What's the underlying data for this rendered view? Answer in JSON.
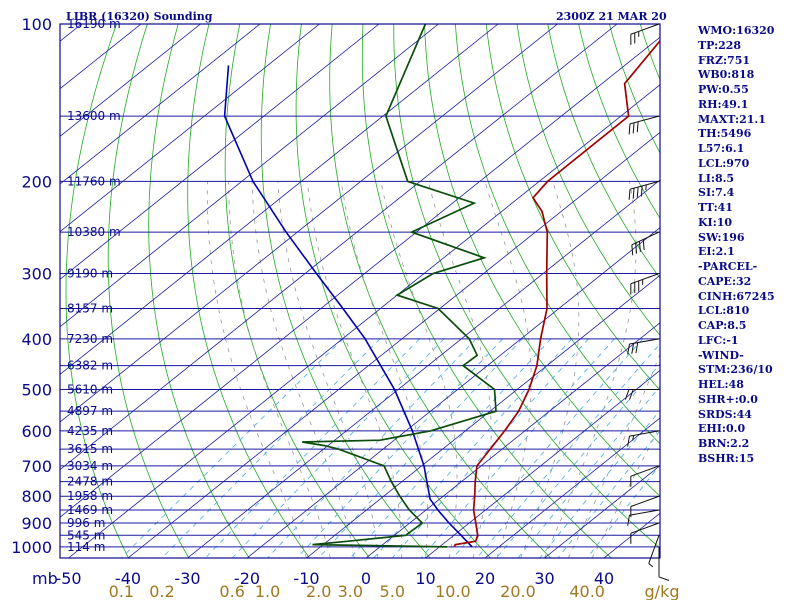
{
  "header": {
    "title_left": "LIBR (16320) Sounding",
    "title_right": "2300Z 21 MAR 20"
  },
  "indices": [
    "WMO:16320",
    "TP:228",
    "FRZ:751",
    "WB0:818",
    "PW:0.55",
    "RH:49.1",
    "MAXT:21.1",
    "TH:5496",
    "L57:6.1",
    "LCL:970",
    "LI:8.5",
    "SI:7.4",
    "TT:41",
    "KI:10",
    "SW:196",
    "EI:2.1",
    "-PARCEL-",
    "CAPE:32",
    "CINH:67245",
    "LCL:810",
    "CAP:8.5",
    "LFC:-1",
    "-WIND-",
    "STM:236/10",
    "HEL:48",
    "SHR+:0.0",
    "SRDS:44",
    "EHI:0.0",
    "BRN:2.2",
    "BSHR:15"
  ],
  "chart_data": {
    "type": "line",
    "subtype": "skew-t log-p sounding",
    "pressure_unit_label": "mb",
    "pressure_levels": [
      100,
      200,
      300,
      400,
      500,
      600,
      700,
      800,
      900,
      1000
    ],
    "pressure_tick_labels": [
      "100",
      "200",
      "300",
      "400",
      "500",
      "600",
      "700",
      "800",
      "900",
      "1000"
    ],
    "height_labels": [
      {
        "p": 100,
        "label": "16190 m"
      },
      {
        "p": 150,
        "label": "13600 m"
      },
      {
        "p": 200,
        "label": "11760 m"
      },
      {
        "p": 250,
        "label": "10380 m"
      },
      {
        "p": 300,
        "label": "9190 m"
      },
      {
        "p": 350,
        "label": "8157 m"
      },
      {
        "p": 400,
        "label": "7230 m"
      },
      {
        "p": 450,
        "label": "6382 m"
      },
      {
        "p": 500,
        "label": "5610 m"
      },
      {
        "p": 550,
        "label": "4897 m"
      },
      {
        "p": 600,
        "label": "4235 m"
      },
      {
        "p": 650,
        "label": "3615 m"
      },
      {
        "p": 700,
        "label": "3034 m"
      },
      {
        "p": 750,
        "label": "2478 m"
      },
      {
        "p": 800,
        "label": "1958 m"
      },
      {
        "p": 850,
        "label": "1469 m"
      },
      {
        "p": 900,
        "label": "996 m"
      },
      {
        "p": 950,
        "label": "545 m"
      },
      {
        "p": 1000,
        "label": "114 m"
      }
    ],
    "temperature_ticks": [
      -50,
      -40,
      -30,
      -20,
      -10,
      0,
      10,
      20,
      30,
      40
    ],
    "temperature_tick_labels": [
      "-50",
      "-40",
      "-30",
      "-20",
      "-10",
      "0",
      "10",
      "20",
      "30",
      "40"
    ],
    "mixing_ratio_labels": [
      "0.1",
      "0.2",
      "0.6",
      "1.0",
      "2.0",
      "3.0",
      "5.0",
      "10.0",
      "20.0",
      "40.0",
      "g/kg"
    ],
    "mixing_ratio_values": [
      0.1,
      0.2,
      0.6,
      1.0,
      2.0,
      3.0,
      5.0,
      10.0,
      20.0,
      40.0
    ],
    "temperature_profile": [
      {
        "p": 1000,
        "t": 12.5
      },
      {
        "p": 990,
        "t": 12.2
      },
      {
        "p": 975,
        "t": 14.9
      },
      {
        "p": 950,
        "t": 14.0
      },
      {
        "p": 900,
        "t": 11.1
      },
      {
        "p": 850,
        "t": 8.0
      },
      {
        "p": 800,
        "t": 5.3
      },
      {
        "p": 750,
        "t": 2.3
      },
      {
        "p": 700,
        "t": -0.7
      },
      {
        "p": 650,
        "t": -2.0
      },
      {
        "p": 600,
        "t": -3.4
      },
      {
        "p": 550,
        "t": -5.2
      },
      {
        "p": 500,
        "t": -8.0
      },
      {
        "p": 450,
        "t": -11.7
      },
      {
        "p": 400,
        "t": -16.7
      },
      {
        "p": 350,
        "t": -22.0
      },
      {
        "p": 300,
        "t": -29.4
      },
      {
        "p": 250,
        "t": -38.0
      },
      {
        "p": 228,
        "t": -43.3
      },
      {
        "p": 215,
        "t": -47.6
      },
      {
        "p": 200,
        "t": -48.6
      },
      {
        "p": 150,
        "t": -48.7
      },
      {
        "p": 130,
        "t": -56.2
      },
      {
        "p": 100,
        "t": -60.4
      }
    ],
    "dewpoint_profile": [
      {
        "p": 1000,
        "t": 11.3
      },
      {
        "p": 990,
        "t": -11.8
      },
      {
        "p": 975,
        "t": -6.5
      },
      {
        "p": 950,
        "t": 1.9
      },
      {
        "p": 900,
        "t": 2.1
      },
      {
        "p": 850,
        "t": -2.8
      },
      {
        "p": 800,
        "t": -7.3
      },
      {
        "p": 750,
        "t": -11.8
      },
      {
        "p": 700,
        "t": -16.3
      },
      {
        "p": 650,
        "t": -27.5
      },
      {
        "p": 640,
        "t": -30.6
      },
      {
        "p": 630,
        "t": -35.1
      },
      {
        "p": 625,
        "t": -22.4
      },
      {
        "p": 600,
        "t": -15.9
      },
      {
        "p": 550,
        "t": -9.0
      },
      {
        "p": 500,
        "t": -13.8
      },
      {
        "p": 450,
        "t": -24.1
      },
      {
        "p": 430,
        "t": -23.9
      },
      {
        "p": 400,
        "t": -28.7
      },
      {
        "p": 350,
        "t": -40.3
      },
      {
        "p": 330,
        "t": -50.0
      },
      {
        "p": 300,
        "t": -48.5
      },
      {
        "p": 280,
        "t": -43.2
      },
      {
        "p": 250,
        "t": -60.8
      },
      {
        "p": 220,
        "t": -56.4
      },
      {
        "p": 200,
        "t": -72.1
      },
      {
        "p": 150,
        "t": -89.5
      },
      {
        "p": 100,
        "t": -102.2
      }
    ],
    "parcel_profile": [
      {
        "p": 1000,
        "t": 15.5
      },
      {
        "p": 950,
        "t": 11.2
      },
      {
        "p": 900,
        "t": 6.6
      },
      {
        "p": 850,
        "t": 2.0
      },
      {
        "p": 810,
        "t": -1.6
      },
      {
        "p": 700,
        "t": -9.6
      },
      {
        "p": 600,
        "t": -18.9
      },
      {
        "p": 500,
        "t": -30.6
      },
      {
        "p": 400,
        "t": -46.2
      },
      {
        "p": 350,
        "t": -56.3
      },
      {
        "p": 300,
        "t": -68.1
      },
      {
        "p": 250,
        "t": -81.9
      },
      {
        "p": 200,
        "t": -98.1
      },
      {
        "p": 150,
        "t": -116.6
      },
      {
        "p": 120,
        "t": -126.6
      }
    ],
    "wind_barbs": [
      {
        "p": 1000,
        "dir": 180,
        "spd": 10
      },
      {
        "p": 950,
        "dir": 200,
        "spd": 5
      },
      {
        "p": 900,
        "dir": 250,
        "spd": 10
      },
      {
        "p": 850,
        "dir": 260,
        "spd": 10
      },
      {
        "p": 800,
        "dir": 250,
        "spd": 10
      },
      {
        "p": 700,
        "dir": 250,
        "spd": 10
      },
      {
        "p": 600,
        "dir": 260,
        "spd": 15
      },
      {
        "p": 500,
        "dir": 270,
        "spd": 20
      },
      {
        "p": 400,
        "dir": 260,
        "spd": 30
      },
      {
        "p": 300,
        "dir": 250,
        "spd": 35
      },
      {
        "p": 250,
        "dir": 245,
        "spd": 40
      },
      {
        "p": 200,
        "dir": 255,
        "spd": 45
      },
      {
        "p": 150,
        "dir": 255,
        "spd": 30
      },
      {
        "p": 100,
        "dir": 250,
        "spd": 25
      }
    ],
    "colors": {
      "frame": "#0a0a8a",
      "isobar": "#1a1aa0",
      "isotherm": "#1a1aa0",
      "dry_adiabat": "#22aa22",
      "moist_adiabat": "#999999",
      "mixing_ratio": "#44aaee",
      "temperature": "#a00000",
      "dewpoint": "#0b4d0b",
      "parcel": "#0000b0",
      "wind_barb": "#111111"
    }
  }
}
